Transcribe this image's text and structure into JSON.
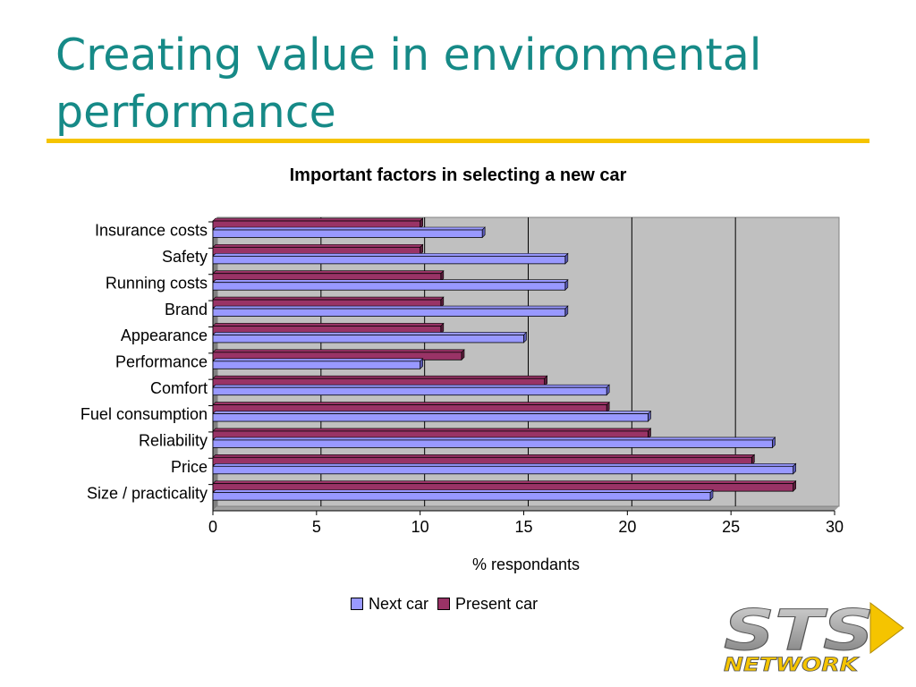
{
  "slide": {
    "title": "Creating value in environmental performance"
  },
  "colors": {
    "title": "#168a87",
    "rule": "#f5c400",
    "plot_bg": "#c0c0c0",
    "next_car": "#9999ff",
    "present_car": "#993366"
  },
  "chart_data": {
    "type": "bar",
    "orientation": "horizontal",
    "title": "Important factors in selecting a new car",
    "xlabel": "% respondants",
    "ylabel": "",
    "xlim": [
      0,
      30
    ],
    "xticks": [
      0,
      5,
      10,
      15,
      20,
      25,
      30
    ],
    "grid": true,
    "legend_position": "bottom",
    "categories": [
      "Insurance costs",
      "Safety",
      "Running costs",
      "Brand",
      "Appearance",
      "Performance",
      "Comfort",
      "Fuel consumption",
      "Reliability",
      "Price",
      "Size / practicality"
    ],
    "series": [
      {
        "name": "Next car",
        "values": [
          13,
          17,
          17,
          17,
          15,
          10,
          19,
          21,
          27,
          28,
          24
        ]
      },
      {
        "name": "Present car",
        "values": [
          10,
          10,
          11,
          11,
          11,
          12,
          16,
          19,
          21,
          26,
          28
        ]
      }
    ]
  },
  "logo": {
    "icon": "sts-network-logo",
    "text_top": "STS",
    "text_bottom": "NETWORK"
  }
}
